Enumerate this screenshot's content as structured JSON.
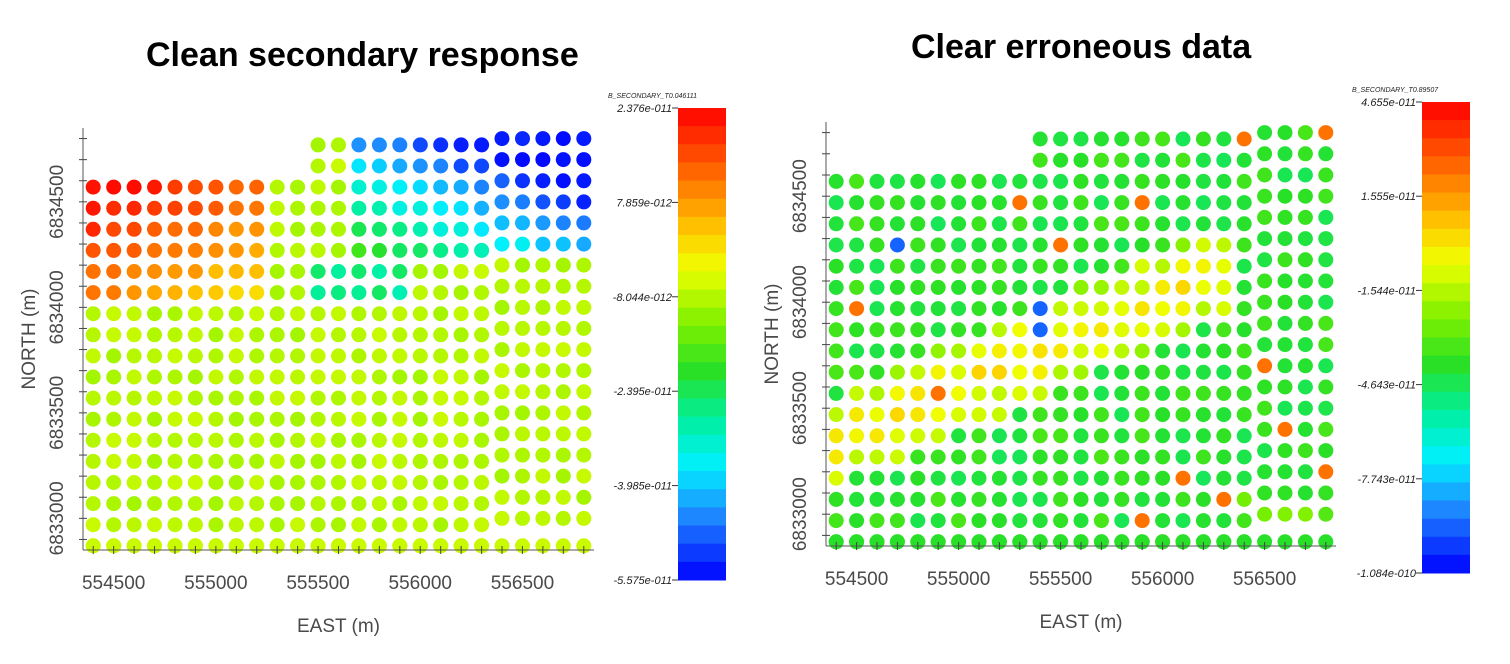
{
  "chart_data": [
    {
      "type": "scatter",
      "title": "Clean secondary response",
      "xlabel": "EAST (m)",
      "ylabel": "NORTH (m)",
      "x_ticks": [
        "554500",
        "555000",
        "555500",
        "556000",
        "556500"
      ],
      "y_ticks": [
        "6833000",
        "6833500",
        "6834000",
        "6834500"
      ],
      "xlim": [
        554350,
        556850
      ],
      "ylim": [
        6832850,
        6834850
      ],
      "colorbar": {
        "title": "B_SECONDARY_T0.046111",
        "labels": [
          "2.376e-011",
          "7.859e-012",
          "-8.044e-012",
          "-2.395e-011",
          "-3.985e-011",
          "-5.575e-011"
        ],
        "max": 2.376e-11,
        "min": -5.575e-11
      },
      "x_start": 554400,
      "x_spacing": 100,
      "stations": [
        {
          "x": 554400,
          "y": [
            6832870,
            6833270,
            6833950,
            6834530,
            6834580
          ]
        },
        {
          "x": 554500,
          "y": [
            6832870,
            6833270,
            6834580
          ]
        },
        {
          "x": 554600,
          "y": [
            6832870,
            6833270,
            6834580
          ]
        },
        {
          "x": 554700,
          "y": [
            6832870,
            6833270,
            6834580
          ]
        },
        {
          "x": 554800,
          "y": [
            6832870,
            6833270,
            6834580
          ]
        },
        {
          "x": 554900,
          "y": [
            6832870,
            6833270,
            6834580
          ]
        },
        {
          "x": 555000,
          "y": [
            6832870,
            6833270,
            6834580
          ]
        },
        {
          "x": 555100,
          "y": [
            6832870,
            6833270,
            6834580
          ]
        },
        {
          "x": 555200,
          "y": [
            6832870,
            6833270,
            6834580
          ]
        },
        {
          "x": 555300,
          "y": [
            6832870,
            6833270,
            6834580
          ]
        },
        {
          "x": 555400,
          "y": [
            6832870,
            6833270,
            6834580
          ]
        },
        {
          "x": 555500,
          "y": [
            6832870,
            6833270,
            6834770
          ]
        },
        {
          "x": 555600,
          "y": [
            6832870,
            6833270,
            6834770
          ]
        },
        {
          "x": 555700,
          "y": [
            6832870,
            6833270,
            6834770
          ]
        },
        {
          "x": 555800,
          "y": [
            6832870,
            6833270,
            6834770
          ]
        },
        {
          "x": 555900,
          "y": [
            6832870,
            6833270,
            6834770
          ]
        },
        {
          "x": 556000,
          "y": [
            6832870,
            6833270,
            6834770
          ]
        },
        {
          "x": 556100,
          "y": [
            6832870,
            6833270,
            6834770
          ]
        },
        {
          "x": 556200,
          "y": [
            6832870,
            6833270,
            6834770
          ]
        },
        {
          "x": 556300,
          "y": [
            6832870,
            6833270,
            6834770
          ]
        },
        {
          "x": 556400,
          "y": [
            6832870,
            6833270,
            6834770
          ]
        },
        {
          "x": 556500,
          "y": [
            6832870,
            6833270,
            6834770
          ]
        },
        {
          "x": 556600,
          "y": [
            6832870,
            6833270,
            6834770
          ]
        },
        {
          "x": 556700,
          "y": [
            6832870,
            6833270,
            6834770
          ]
        },
        {
          "x": 556800,
          "y": [
            6832870,
            6833270,
            6834770
          ]
        }
      ]
    },
    {
      "type": "scatter",
      "title": "Clear erroneous data",
      "xlabel": "EAST (m)",
      "ylabel": "NORTH (m)",
      "x_ticks": [
        "554500",
        "555000",
        "555500",
        "556000",
        "556500"
      ],
      "y_ticks": [
        "6833000",
        "6833500",
        "6834000",
        "6834500"
      ],
      "xlim": [
        554350,
        556850
      ],
      "ylim": [
        6832850,
        6834850
      ],
      "colorbar": {
        "title": "B_SECONDARY_T0.89507",
        "labels": [
          "4.655e-011",
          "1.555e-011",
          "-1.544e-011",
          "-4.643e-011",
          "-7.743e-011",
          "-1.084e-010"
        ],
        "max": 4.655e-11,
        "min": -1.084e-10
      }
    }
  ]
}
